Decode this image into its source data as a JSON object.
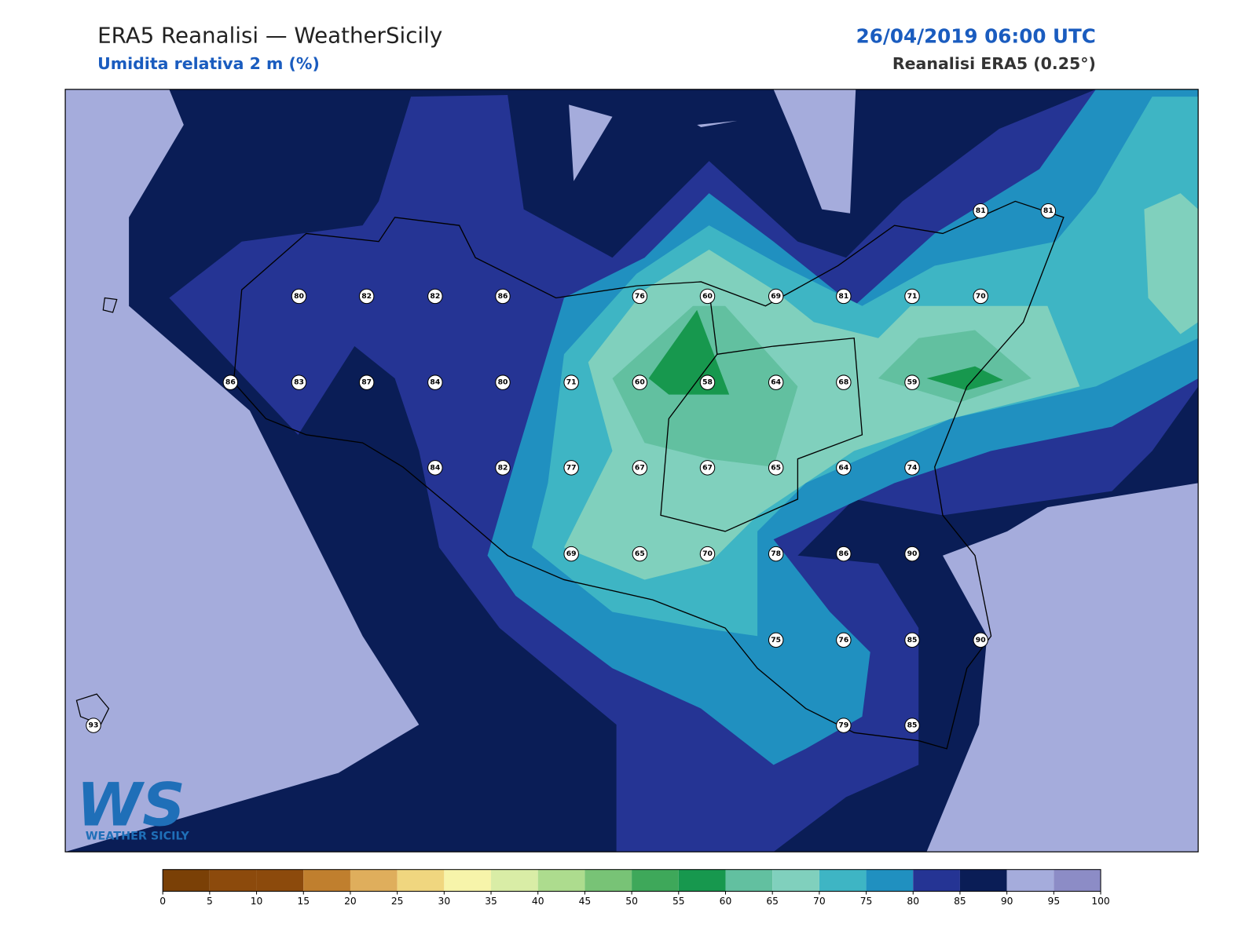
{
  "header": {
    "title": "ERA5 Reanalisi — WeatherSicily",
    "subtitle": "Umidita relativa 2 m (%)",
    "date": "26/04/2019 06:00 UTC",
    "source": "Reanalisi ERA5 (0.25°)"
  },
  "stations": [
    81,
    81,
    80,
    82,
    82,
    86,
    76,
    60,
    69,
    81,
    71,
    70,
    86,
    83,
    87,
    84,
    80,
    71,
    60,
    58,
    64,
    68,
    59,
    84,
    82,
    77,
    67,
    67,
    65,
    64,
    74,
    69,
    65,
    70,
    78,
    86,
    90,
    75,
    76,
    85,
    90,
    93,
    79,
    85
  ],
  "colorbar": {
    "ticks": [
      0,
      5,
      10,
      15,
      20,
      25,
      30,
      35,
      40,
      45,
      50,
      55,
      60,
      65,
      70,
      75,
      80,
      85,
      90,
      95,
      100
    ],
    "colors": [
      "#7a4006",
      "#8c4a0c",
      "#8c4a0c",
      "#c07f2e",
      "#dfae5c",
      "#f0d67f",
      "#f7f4aa",
      "#d9eda6",
      "#addc8e",
      "#78c376",
      "#3ea85a",
      "#17984e",
      "#62c0a0",
      "#80d0bd",
      "#3eb5c4",
      "#2090c0",
      "#253494",
      "#0a1d56",
      "#a5acdc",
      "#8c8cc6"
    ]
  },
  "logo": {
    "mark": "WS",
    "name": "WEATHER SICILY"
  }
}
